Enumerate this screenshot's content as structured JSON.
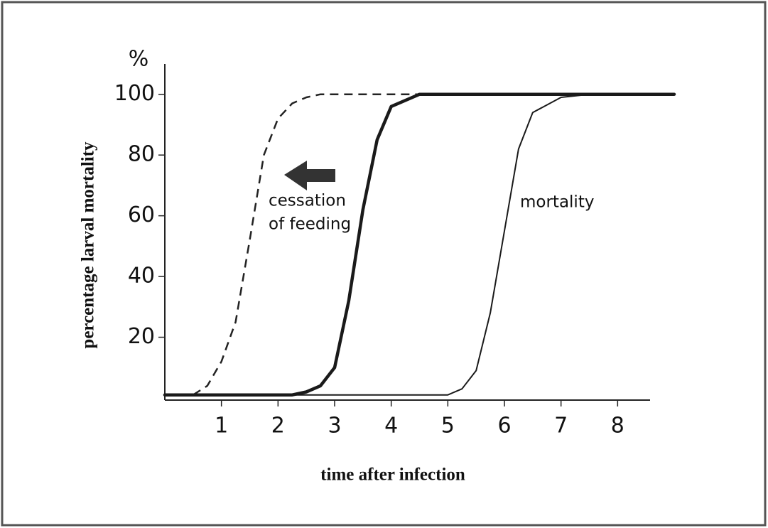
{
  "chart_data": {
    "type": "line",
    "y_unit": "%",
    "ylabel": "percentage larval mortality",
    "xlabel": "time after infection",
    "annotations": [
      "cessation",
      "of feeding",
      "mortality"
    ],
    "x": [
      0,
      0.5,
      0.75,
      1,
      1.25,
      1.5,
      1.75,
      2,
      2.25,
      2.5,
      2.75,
      3,
      3.25,
      3.5,
      3.75,
      4,
      4.5,
      5,
      5.25,
      5.5,
      5.75,
      6,
      6.25,
      6.5,
      7,
      7.5,
      8,
      9
    ],
    "series": [
      {
        "color": "#222222",
        "style": "dashed",
        "width": 2.5,
        "values": [
          1,
          1,
          4,
          12,
          25,
          52,
          80,
          92,
          97,
          99,
          100,
          100,
          100,
          100,
          100,
          100,
          100,
          100,
          100,
          100,
          100,
          100,
          100,
          100,
          100,
          100,
          100,
          100
        ]
      },
      {
        "color": "#1a1a1a",
        "style": "solid",
        "width": 4.5,
        "values": [
          1,
          1,
          1,
          1,
          1,
          1,
          1,
          1,
          1,
          2,
          4,
          10,
          32,
          62,
          85,
          96,
          100,
          100,
          100,
          100,
          100,
          100,
          100,
          100,
          100,
          100,
          100,
          100
        ]
      },
      {
        "color": "#1a1a1a",
        "style": "solid",
        "width": 2,
        "values": [
          1,
          1,
          1,
          1,
          1,
          1,
          1,
          1,
          1,
          1,
          1,
          1,
          1,
          1,
          1,
          1,
          1,
          1,
          3,
          9,
          28,
          55,
          82,
          94,
          99,
          100,
          100,
          100
        ]
      }
    ],
    "xlim": [
      0,
      9
    ],
    "ylim": [
      0,
      110
    ],
    "xticks": [
      1,
      2,
      3,
      4,
      5,
      6,
      7,
      8
    ],
    "yticks": [
      20,
      40,
      60,
      80,
      100
    ],
    "grid": false
  }
}
